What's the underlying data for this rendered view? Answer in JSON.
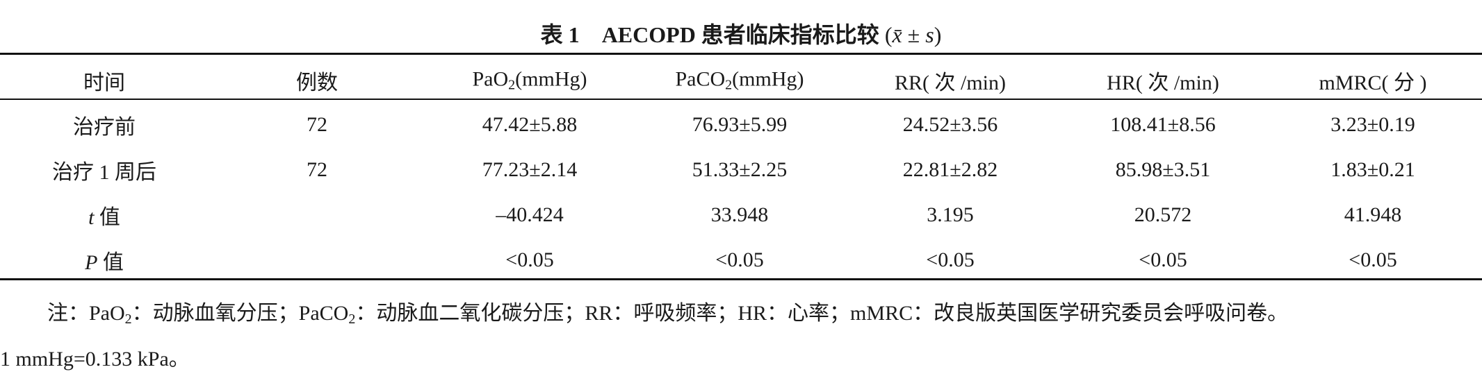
{
  "title": {
    "label": "表 1",
    "text": "AECOPD 患者临床指标比较",
    "stat_open": "(",
    "stat_x": "x̄",
    "stat_pm": " ± ",
    "stat_s": "s",
    "stat_close": ")"
  },
  "table": {
    "header": [
      {
        "text": "时间"
      },
      {
        "text": "例数"
      },
      {
        "text": "PaO",
        "sub": "2",
        "after": "(mmHg)"
      },
      {
        "text": "PaCO",
        "sub": "2",
        "after": "(mmHg)"
      },
      {
        "text": "RR( 次 /min)"
      },
      {
        "text": "HR( 次 /min)"
      },
      {
        "text": "mMRC( 分 )"
      }
    ],
    "rows": [
      [
        {
          "text": "治疗前"
        },
        "72",
        "47.42±5.88",
        "76.93±5.99",
        "24.52±3.56",
        "108.41±8.56",
        "3.23±0.19"
      ],
      [
        {
          "text": "治疗 1 周后"
        },
        "72",
        "77.23±2.14",
        "51.33±2.25",
        "22.81±2.82",
        "85.98±3.51",
        "1.83±0.21"
      ],
      [
        {
          "italic": "t",
          "text": " 值"
        },
        null,
        "–40.424",
        "33.948",
        "3.195",
        "20.572",
        "41.948"
      ],
      [
        {
          "italic": "P",
          "text": " 值"
        },
        null,
        "<0.05",
        "<0.05",
        "<0.05",
        "<0.05",
        "<0.05"
      ]
    ]
  },
  "note": {
    "prefix": "注：",
    "items": [
      {
        "text": "PaO",
        "sub": "2",
        "after": "：动脉血氧分压；"
      },
      {
        "text": "PaCO",
        "sub": "2",
        "after": "：动脉血二氧化碳分压；"
      },
      {
        "text": "RR：呼吸频率；HR：心率；mMRC：改良版英国医学研究委员会呼吸问卷。"
      }
    ],
    "line2": "1 mmHg=0.133 kPa。"
  }
}
